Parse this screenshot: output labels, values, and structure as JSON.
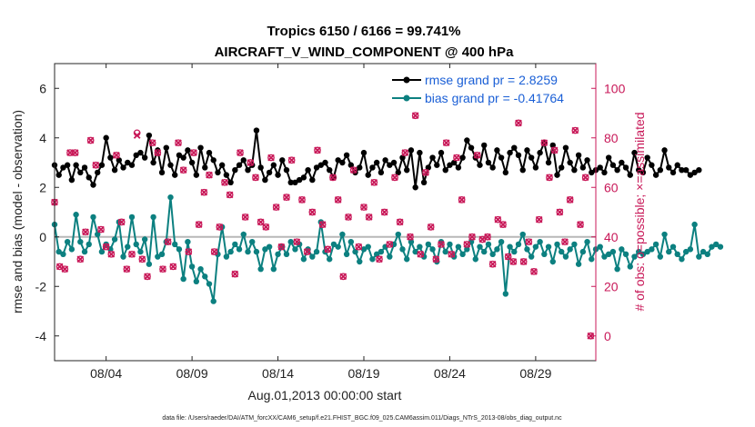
{
  "chart_data": {
    "type": "line",
    "title_line1": "Tropics 6150 / 6166 = 99.741%",
    "title_line2": "AIRCRAFT_V_WIND_COMPONENT @ 400 hPa",
    "xlabel": "Aug.01,2013 00:00:00 start",
    "ylabel_left": "rmse and bias (model - observation)",
    "ylabel_right": "# of obs: o=possible; ×=assimilated",
    "xlim": [
      1,
      32.5
    ],
    "ylim_left": [
      -5,
      7
    ],
    "ylim_right": [
      -10,
      110
    ],
    "x_ticks": [
      {
        "value": 4,
        "label": "08/04"
      },
      {
        "value": 9,
        "label": "08/09"
      },
      {
        "value": 14,
        "label": "08/14"
      },
      {
        "value": 19,
        "label": "08/19"
      },
      {
        "value": 24,
        "label": "08/24"
      },
      {
        "value": 29,
        "label": "08/29"
      }
    ],
    "y_ticks_left": [
      {
        "value": -4,
        "label": "-4"
      },
      {
        "value": -2,
        "label": "-2"
      },
      {
        "value": 0,
        "label": "0"
      },
      {
        "value": 2,
        "label": "2"
      },
      {
        "value": 4,
        "label": "4"
      },
      {
        "value": 6,
        "label": "6"
      }
    ],
    "y_ticks_right": [
      {
        "value": 0,
        "label": "0"
      },
      {
        "value": 20,
        "label": "20"
      },
      {
        "value": 40,
        "label": "40"
      },
      {
        "value": 60,
        "label": "60"
      },
      {
        "value": 80,
        "label": "80"
      },
      {
        "value": 100,
        "label": "100"
      }
    ],
    "zero_line": 0,
    "series": [
      {
        "name": "rmse",
        "legend": "rmse grand pr = 2.8259",
        "color": "#000000",
        "axis": "left",
        "x_start": 1.0,
        "x_step": 0.25,
        "values": [
          2.9,
          2.5,
          2.8,
          2.9,
          2.3,
          2.9,
          2.6,
          2.8,
          2.4,
          2.1,
          2.6,
          2.9,
          4.0,
          3.2,
          2.7,
          3.1,
          2.8,
          3.0,
          2.9,
          3.3,
          3.4,
          3.2,
          4.1,
          3.0,
          3.5,
          2.6,
          3.6,
          2.9,
          2.5,
          3.3,
          3.2,
          3.5,
          3.0,
          2.5,
          3.6,
          2.8,
          3.4,
          3.1,
          2.6,
          2.9,
          2.5,
          2.2,
          2.7,
          2.9,
          3.1,
          2.7,
          2.9,
          4.3,
          2.8,
          2.3,
          2.6,
          2.9,
          2.5,
          3.1,
          2.7,
          2.2,
          2.2,
          2.3,
          2.4,
          2.7,
          2.3,
          2.8,
          2.9,
          3.0,
          2.7,
          2.4,
          3.1,
          3.0,
          3.3,
          2.9,
          2.6,
          2.8,
          3.4,
          2.5,
          2.8,
          3.0,
          2.6,
          3.1,
          2.9,
          3.0,
          2.6,
          3.2,
          2.7,
          3.5,
          2.0,
          3.4,
          2.2,
          2.8,
          3.2,
          2.9,
          3.4,
          2.7,
          2.9,
          3.0,
          2.8,
          3.2,
          3.9,
          3.6,
          3.2,
          2.9,
          3.7,
          3.0,
          2.8,
          3.5,
          3.2,
          2.6,
          3.4,
          3.6,
          3.3,
          2.7,
          3.5,
          3.2,
          2.8,
          3.4,
          3.8,
          3.0,
          3.7,
          2.5,
          2.8,
          3.6,
          3.0,
          2.7,
          3.3,
          2.8,
          3.1,
          2.6,
          2.7,
          2.8,
          2.6,
          3.2,
          2.9,
          2.7,
          3.0,
          2.8,
          2.5,
          3.4,
          2.7,
          2.6,
          3.2,
          2.9,
          2.5,
          2.7,
          3.5,
          2.8,
          2.6,
          2.9,
          2.7,
          2.7,
          2.5,
          2.6,
          2.7
        ],
        "marker": "dot"
      },
      {
        "name": "bias",
        "legend": "bias grand pr = -0.41764",
        "color": "#0c8080",
        "axis": "left",
        "x_start": 1.0,
        "x_step": 0.25,
        "values": [
          0.5,
          -0.6,
          -0.7,
          -0.2,
          -0.5,
          0.9,
          -0.2,
          -0.6,
          -0.3,
          0.8,
          0.1,
          -0.6,
          -0.3,
          -0.5,
          -0.1,
          0.6,
          -0.8,
          -0.4,
          0.8,
          -0.3,
          -0.6,
          -0.1,
          -1.1,
          0.8,
          -0.8,
          -0.7,
          -0.2,
          1.6,
          -0.3,
          -0.5,
          -1.7,
          -0.2,
          -1.2,
          -1.8,
          -1.3,
          -1.6,
          -1.9,
          -2.6,
          -0.7,
          0.4,
          -0.8,
          -0.6,
          -0.3,
          -0.5,
          0.1,
          -0.6,
          -0.2,
          -0.6,
          -1.3,
          -0.5,
          -0.4,
          -1.3,
          -0.7,
          -0.4,
          -0.7,
          -0.2,
          -0.5,
          -0.3,
          -0.9,
          -0.5,
          -0.8,
          -0.6,
          0.6,
          -0.6,
          -0.9,
          -0.3,
          -0.4,
          0.1,
          -0.7,
          -0.2,
          -0.6,
          -1.0,
          -0.5,
          -0.4,
          -0.9,
          -0.7,
          -0.6,
          -0.4,
          -0.8,
          -0.3,
          0.1,
          -0.5,
          -0.9,
          -0.2,
          -0.6,
          -0.4,
          -0.8,
          -0.3,
          -0.5,
          -1.0,
          -0.2,
          -0.6,
          -0.3,
          -0.8,
          -0.4,
          -0.7,
          -0.5,
          -0.2,
          -0.9,
          -0.4,
          -0.6,
          -0.3,
          -0.7,
          -0.5,
          -0.2,
          -2.3,
          -0.4,
          -0.6,
          -0.3,
          0.1,
          -0.5,
          -0.8,
          -0.4,
          -0.2,
          -0.7,
          -0.4,
          -1.0,
          -0.3,
          -0.6,
          -0.8,
          -0.5,
          -0.3,
          -1.1,
          -0.6,
          -0.2,
          -0.9,
          -0.5,
          -0.4,
          -0.8,
          -0.7,
          -0.6,
          -1.3,
          -0.5,
          -0.7,
          -1.2,
          -0.8,
          -0.6,
          -0.7,
          -0.6,
          -0.5,
          -0.3,
          -0.8,
          0.1,
          -0.6,
          -0.4,
          -0.7,
          -0.9,
          -0.6,
          -0.5,
          0.5,
          -0.8,
          -0.6,
          -0.7,
          -0.4,
          -0.3,
          -0.4
        ],
        "marker": "dot"
      },
      {
        "name": "obs_possible",
        "legend": "",
        "color": "#c81858",
        "axis": "right",
        "marker": "o",
        "points": [
          [
            1.0,
            54
          ],
          [
            1.3,
            28
          ],
          [
            1.6,
            27
          ],
          [
            1.9,
            74
          ],
          [
            2.2,
            74
          ],
          [
            2.5,
            31
          ],
          [
            2.8,
            42
          ],
          [
            3.1,
            79
          ],
          [
            3.4,
            69
          ],
          [
            3.7,
            43
          ],
          [
            4.0,
            36
          ],
          [
            4.3,
            33
          ],
          [
            4.6,
            73
          ],
          [
            4.9,
            46
          ],
          [
            5.2,
            27
          ],
          [
            5.5,
            33
          ],
          [
            5.8,
            82
          ],
          [
            6.1,
            31
          ],
          [
            6.4,
            24
          ],
          [
            6.7,
            78
          ],
          [
            7.0,
            74
          ],
          [
            7.3,
            27
          ],
          [
            7.6,
            38
          ],
          [
            7.9,
            28
          ],
          [
            8.2,
            78
          ],
          [
            8.5,
            67
          ],
          [
            8.8,
            34
          ],
          [
            9.1,
            74
          ],
          [
            9.4,
            45
          ],
          [
            9.7,
            58
          ],
          [
            10.0,
            65
          ],
          [
            10.3,
            34
          ],
          [
            10.6,
            44
          ],
          [
            10.9,
            62
          ],
          [
            11.2,
            57
          ],
          [
            11.5,
            25
          ],
          [
            11.8,
            74
          ],
          [
            12.1,
            48
          ],
          [
            12.4,
            70
          ],
          [
            12.7,
            64
          ],
          [
            13.0,
            46
          ],
          [
            13.3,
            44
          ],
          [
            13.6,
            72
          ],
          [
            13.9,
            52
          ],
          [
            14.2,
            36
          ],
          [
            14.5,
            56
          ],
          [
            14.8,
            71
          ],
          [
            15.1,
            38
          ],
          [
            15.4,
            55
          ],
          [
            15.7,
            34
          ],
          [
            16.0,
            50
          ],
          [
            16.3,
            75
          ],
          [
            16.6,
            45
          ],
          [
            16.9,
            35
          ],
          [
            17.2,
            64
          ],
          [
            17.5,
            55
          ],
          [
            17.8,
            24
          ],
          [
            18.1,
            48
          ],
          [
            18.4,
            67
          ],
          [
            18.7,
            36
          ],
          [
            19.0,
            52
          ],
          [
            19.3,
            48
          ],
          [
            19.6,
            62
          ],
          [
            19.9,
            31
          ],
          [
            20.2,
            50
          ],
          [
            20.5,
            37
          ],
          [
            20.8,
            64
          ],
          [
            21.1,
            46
          ],
          [
            21.4,
            74
          ],
          [
            21.7,
            40
          ],
          [
            22.0,
            89
          ],
          [
            22.3,
            33
          ],
          [
            22.6,
            66
          ],
          [
            22.9,
            44
          ],
          [
            23.2,
            31
          ],
          [
            23.5,
            37
          ],
          [
            23.8,
            78
          ],
          [
            24.1,
            33
          ],
          [
            24.4,
            72
          ],
          [
            24.7,
            55
          ],
          [
            25.0,
            37
          ],
          [
            25.3,
            40
          ],
          [
            25.6,
            73
          ],
          [
            25.9,
            39
          ],
          [
            26.2,
            40
          ],
          [
            26.5,
            29
          ],
          [
            26.8,
            47
          ],
          [
            27.1,
            45
          ],
          [
            27.4,
            32
          ],
          [
            27.7,
            30
          ],
          [
            28.0,
            86
          ],
          [
            28.3,
            30
          ],
          [
            28.6,
            38
          ],
          [
            28.9,
            26
          ],
          [
            29.2,
            47
          ],
          [
            29.5,
            78
          ],
          [
            29.8,
            64
          ],
          [
            30.1,
            75
          ],
          [
            30.4,
            50
          ],
          [
            30.7,
            38
          ],
          [
            31.0,
            55
          ],
          [
            31.3,
            83
          ],
          [
            31.6,
            45
          ],
          [
            31.9,
            64
          ],
          [
            32.2,
            0
          ]
        ]
      },
      {
        "name": "obs_assimilated",
        "legend": "",
        "color": "#c81858",
        "axis": "right",
        "marker": "x",
        "points": [
          [
            1.0,
            54
          ],
          [
            1.3,
            28
          ],
          [
            1.6,
            27
          ],
          [
            1.9,
            74
          ],
          [
            2.2,
            74
          ],
          [
            2.5,
            31
          ],
          [
            2.8,
            42
          ],
          [
            3.1,
            79
          ],
          [
            3.4,
            69
          ],
          [
            3.7,
            43
          ],
          [
            4.0,
            36
          ],
          [
            4.3,
            33
          ],
          [
            4.6,
            73
          ],
          [
            4.9,
            46
          ],
          [
            5.2,
            27
          ],
          [
            5.5,
            33
          ],
          [
            5.8,
            81
          ],
          [
            6.1,
            31
          ],
          [
            6.4,
            24
          ],
          [
            6.7,
            78
          ],
          [
            7.0,
            74
          ],
          [
            7.3,
            27
          ],
          [
            7.6,
            38
          ],
          [
            7.9,
            28
          ],
          [
            8.2,
            78
          ],
          [
            8.5,
            67
          ],
          [
            8.8,
            34
          ],
          [
            9.1,
            74
          ],
          [
            9.4,
            45
          ],
          [
            9.7,
            58
          ],
          [
            10.0,
            65
          ],
          [
            10.3,
            34
          ],
          [
            10.6,
            44
          ],
          [
            10.9,
            62
          ],
          [
            11.2,
            57
          ],
          [
            11.5,
            25
          ],
          [
            11.8,
            74
          ],
          [
            12.1,
            48
          ],
          [
            12.4,
            70
          ],
          [
            12.7,
            64
          ],
          [
            13.0,
            46
          ],
          [
            13.3,
            44
          ],
          [
            13.6,
            72
          ],
          [
            13.9,
            52
          ],
          [
            14.2,
            36
          ],
          [
            14.5,
            56
          ],
          [
            14.8,
            71
          ],
          [
            15.1,
            38
          ],
          [
            15.4,
            55
          ],
          [
            15.7,
            34
          ],
          [
            16.0,
            50
          ],
          [
            16.3,
            75
          ],
          [
            16.6,
            45
          ],
          [
            16.9,
            35
          ],
          [
            17.2,
            64
          ],
          [
            17.5,
            55
          ],
          [
            17.8,
            24
          ],
          [
            18.1,
            48
          ],
          [
            18.4,
            67
          ],
          [
            18.7,
            36
          ],
          [
            19.0,
            52
          ],
          [
            19.3,
            48
          ],
          [
            19.6,
            62
          ],
          [
            19.9,
            31
          ],
          [
            20.2,
            50
          ],
          [
            20.5,
            37
          ],
          [
            20.8,
            64
          ],
          [
            21.1,
            46
          ],
          [
            21.4,
            74
          ],
          [
            21.7,
            40
          ],
          [
            22.0,
            89
          ],
          [
            22.3,
            33
          ],
          [
            22.6,
            66
          ],
          [
            22.9,
            44
          ],
          [
            23.2,
            31
          ],
          [
            23.5,
            37
          ],
          [
            23.8,
            78
          ],
          [
            24.1,
            33
          ],
          [
            24.4,
            72
          ],
          [
            24.7,
            55
          ],
          [
            25.0,
            37
          ],
          [
            25.3,
            40
          ],
          [
            25.6,
            73
          ],
          [
            25.9,
            39
          ],
          [
            26.2,
            40
          ],
          [
            26.5,
            29
          ],
          [
            26.8,
            47
          ],
          [
            27.1,
            45
          ],
          [
            27.4,
            32
          ],
          [
            27.7,
            30
          ],
          [
            28.0,
            86
          ],
          [
            28.3,
            30
          ],
          [
            28.6,
            38
          ],
          [
            28.9,
            26
          ],
          [
            29.2,
            47
          ],
          [
            29.5,
            78
          ],
          [
            29.8,
            64
          ],
          [
            30.1,
            75
          ],
          [
            30.4,
            50
          ],
          [
            30.7,
            38
          ],
          [
            31.0,
            55
          ],
          [
            31.3,
            83
          ],
          [
            31.6,
            45
          ],
          [
            31.9,
            64
          ],
          [
            32.2,
            0
          ]
        ]
      }
    ]
  },
  "footer": {
    "data_file": "data file: /Users/raeder/DAI/ATM_forcXX/CAM6_setup/f.e21.FHIST_BGC.f09_025.CAM6assim.011/Diags_NTrS_2013-08/obs_diag_output.nc"
  }
}
